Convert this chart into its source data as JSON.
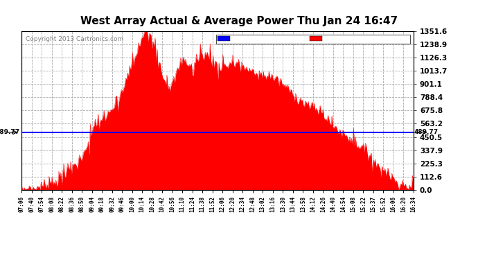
{
  "title": "West Array Actual & Average Power Thu Jan 24 16:47",
  "copyright": "Copyright 2013 Cartronics.com",
  "average_value": 489.77,
  "y_max": 1351.6,
  "y_min": 0.0,
  "y_ticks": [
    0.0,
    112.6,
    225.3,
    337.9,
    450.5,
    563.2,
    675.8,
    788.4,
    901.1,
    1013.7,
    1126.3,
    1238.9,
    1351.6
  ],
  "background_color": "#ffffff",
  "fill_color": "#ff0000",
  "line_color": "#0000ff",
  "grid_color": "#aaaaaa",
  "legend_avg_bg": "#0000ff",
  "legend_west_bg": "#ff0000",
  "x_labels": [
    "07:06",
    "07:40",
    "07:54",
    "08:08",
    "08:22",
    "08:36",
    "08:50",
    "09:04",
    "09:18",
    "09:32",
    "09:46",
    "10:00",
    "10:14",
    "10:28",
    "10:42",
    "10:56",
    "11:10",
    "11:24",
    "11:38",
    "11:52",
    "12:06",
    "12:20",
    "12:34",
    "12:48",
    "13:02",
    "13:16",
    "13:30",
    "13:44",
    "13:58",
    "14:12",
    "14:26",
    "14:40",
    "14:54",
    "15:08",
    "15:22",
    "15:37",
    "15:52",
    "16:06",
    "16:20",
    "16:34"
  ]
}
